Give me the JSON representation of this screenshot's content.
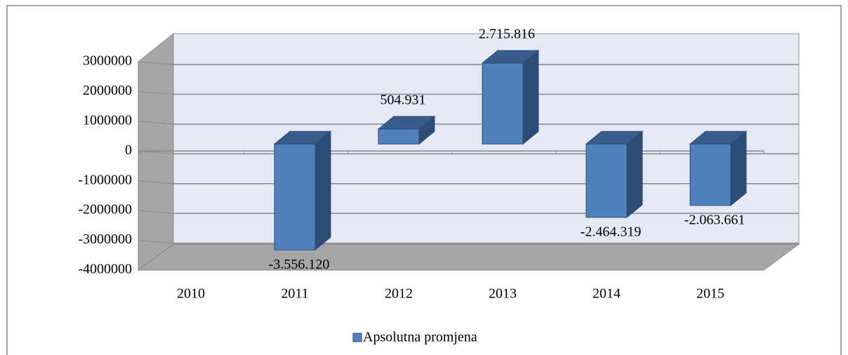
{
  "chart_data": {
    "type": "bar3d",
    "categories": [
      "2010",
      "2011",
      "2012",
      "2013",
      "2014",
      "2015"
    ],
    "series": [
      {
        "name": "Apsolutna promjena",
        "color": "#4f81bd",
        "values": [
          null,
          -3556120,
          504931,
          2715816,
          -2464319,
          -2063661
        ],
        "value_labels": [
          null,
          "-3.556.120",
          "504.931",
          "2.715.816",
          "-2.464.319",
          "-2.063.661"
        ]
      }
    ],
    "ylim": [
      -4000000,
      3000000
    ],
    "yticks": [
      -4000000,
      -3000000,
      -2000000,
      -1000000,
      0,
      1000000,
      2000000,
      3000000
    ],
    "grid": true,
    "legend": "bottom"
  }
}
